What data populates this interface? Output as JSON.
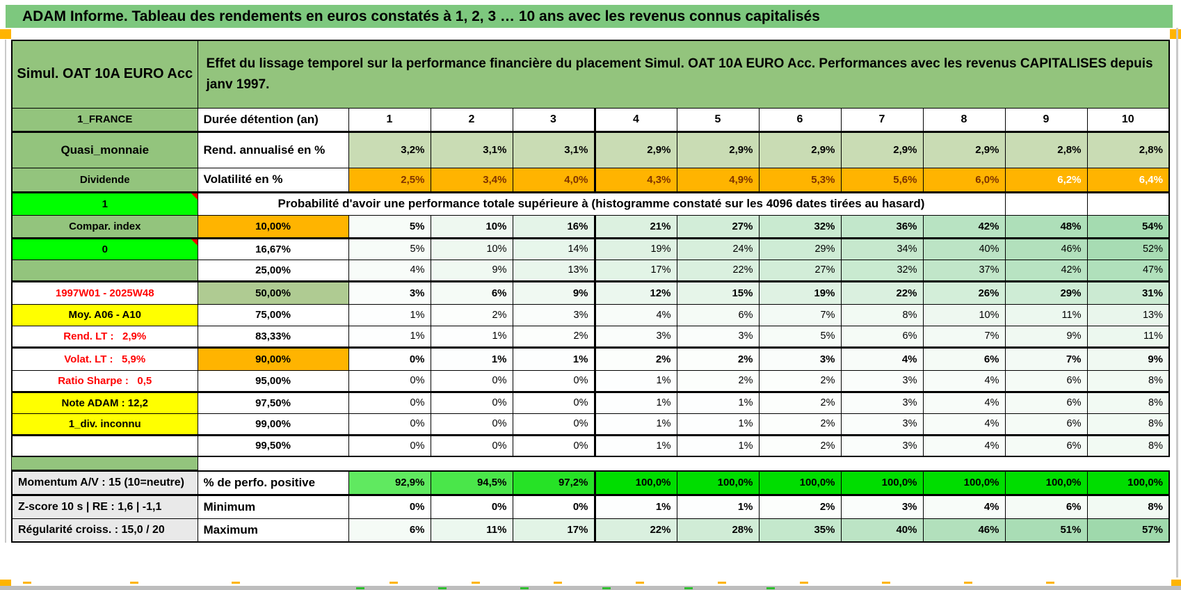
{
  "title": "ADAM Informe. Tableau des rendements en euros constatés à 1, 2, 3 … 10 ans avec les revenus connus capitalisés",
  "header": {
    "instrument": "Simul. OAT 10A EURO Acc",
    "description": "Effet du lissage temporel sur la performance financière du placement Simul. OAT 10A EURO Acc. Performances avec les revenus CAPITALISES depuis janv 1997."
  },
  "left": {
    "france": "1_FRANCE",
    "quasi": "Quasi_monnaie",
    "dividende": "Dividende",
    "one": "1",
    "momentum": "Momentum A/V : 15 (10=neutre)",
    "zscore": "Z-score 10 s | RE : 1,6 | -1,1",
    "regularite": "Régularité croiss. : 15,0 / 20"
  },
  "row_labels": {
    "duree": "Durée détention (an)",
    "rend": "Rend. annualisé en %",
    "volat": "Volatilité en %",
    "proba": "Probabilité d'avoir une performance totale supérieure à (histogramme constaté sur les 4096 dates tirées au hasard)",
    "perfo": "% de perfo. positive",
    "min": "Minimum",
    "max": "Maximum"
  },
  "columns": [
    "1",
    "2",
    "3",
    "4",
    "5",
    "6",
    "7",
    "8",
    "9",
    "10"
  ],
  "rows": {
    "rend_annualise": [
      "3,2%",
      "3,1%",
      "3,1%",
      "2,9%",
      "2,9%",
      "2,9%",
      "2,9%",
      "2,9%",
      "2,8%",
      "2,8%"
    ],
    "volatilite": [
      "2,5%",
      "3,4%",
      "4,0%",
      "4,3%",
      "4,9%",
      "5,3%",
      "5,6%",
      "6,0%",
      "6,2%",
      "6,4%"
    ],
    "prob_rows": [
      {
        "label": "10,00%",
        "style": "orange",
        "bold": true,
        "values": [
          "5%",
          "10%",
          "16%",
          "21%",
          "27%",
          "32%",
          "36%",
          "42%",
          "48%",
          "54%"
        ]
      },
      {
        "label": "16,67%",
        "style": "plain",
        "bold": false,
        "values": [
          "5%",
          "10%",
          "14%",
          "19%",
          "24%",
          "29%",
          "34%",
          "40%",
          "46%",
          "52%"
        ]
      },
      {
        "label": "25,00%",
        "style": "plain",
        "bold": false,
        "values": [
          "4%",
          "9%",
          "13%",
          "17%",
          "22%",
          "27%",
          "32%",
          "37%",
          "42%",
          "47%"
        ]
      },
      {
        "label": "50,00%",
        "style": "sage",
        "bold": true,
        "values": [
          "3%",
          "6%",
          "9%",
          "12%",
          "15%",
          "19%",
          "22%",
          "26%",
          "29%",
          "31%"
        ]
      },
      {
        "label": "75,00%",
        "style": "plain",
        "bold": false,
        "values": [
          "1%",
          "2%",
          "3%",
          "4%",
          "6%",
          "7%",
          "8%",
          "10%",
          "11%",
          "13%"
        ]
      },
      {
        "label": "83,33%",
        "style": "plain",
        "bold": false,
        "values": [
          "1%",
          "1%",
          "2%",
          "3%",
          "3%",
          "5%",
          "6%",
          "7%",
          "9%",
          "11%"
        ]
      },
      {
        "label": "90,00%",
        "style": "orange",
        "bold": true,
        "values": [
          "0%",
          "1%",
          "1%",
          "2%",
          "2%",
          "3%",
          "4%",
          "6%",
          "7%",
          "9%"
        ]
      },
      {
        "label": "95,00%",
        "style": "plain",
        "bold": false,
        "values": [
          "0%",
          "0%",
          "0%",
          "1%",
          "2%",
          "2%",
          "3%",
          "4%",
          "6%",
          "8%"
        ]
      },
      {
        "label": "97,50%",
        "style": "plain",
        "bold": false,
        "values": [
          "0%",
          "0%",
          "0%",
          "1%",
          "1%",
          "2%",
          "3%",
          "4%",
          "6%",
          "8%"
        ]
      },
      {
        "label": "99,00%",
        "style": "plain",
        "bold": false,
        "values": [
          "0%",
          "0%",
          "0%",
          "1%",
          "1%",
          "2%",
          "3%",
          "4%",
          "6%",
          "8%"
        ]
      },
      {
        "label": "99,50%",
        "style": "plain",
        "bold": false,
        "values": [
          "0%",
          "0%",
          "0%",
          "1%",
          "1%",
          "2%",
          "3%",
          "4%",
          "6%",
          "8%"
        ]
      }
    ],
    "perfo_positive": [
      "92,9%",
      "94,5%",
      "97,2%",
      "100,0%",
      "100,0%",
      "100,0%",
      "100,0%",
      "100,0%",
      "100,0%",
      "100,0%"
    ],
    "minimum": [
      "0%",
      "0%",
      "0%",
      "1%",
      "1%",
      "2%",
      "3%",
      "4%",
      "6%",
      "8%"
    ],
    "maximum": [
      "6%",
      "11%",
      "17%",
      "22%",
      "28%",
      "35%",
      "40%",
      "46%",
      "51%",
      "57%"
    ]
  },
  "prob_left_cells": [
    {
      "text": "Compar. index",
      "style": "green"
    },
    {
      "text": "0",
      "style": "bright",
      "marker": true
    },
    {
      "text": "",
      "style": "green"
    },
    {
      "text": "1997W01 - 2025W48",
      "style": "period"
    },
    {
      "text": "Moy. A06 - A10",
      "style": "yellowright"
    },
    {
      "text": "Rend. LT :   2,9%",
      "style": "redright"
    },
    {
      "text": "Volat. LT :   5,9%",
      "style": "redright"
    },
    {
      "text": "Ratio Sharpe :   0,5",
      "style": "redright"
    },
    {
      "text": "Note ADAM : 12,2",
      "style": "yellowleft"
    },
    {
      "text": "1_div. inconnu",
      "style": "yellowleft"
    },
    {
      "text": "",
      "style": "blank"
    }
  ],
  "colors": {
    "title_green": "#7DC87E",
    "header_green": "#93C47D",
    "bright_green": "#00FF00",
    "orange": "#FFB400",
    "sage": "#C9DCB4",
    "sage_dark": "#AFCB92",
    "yellow": "#FFFF00",
    "grey_label": "#E9E9E9",
    "red_text": "#FF0000",
    "volat_text": "#7F3300",
    "volat_text_hi": "#FFFFFF",
    "prob_scale_end": "#9FD9AC",
    "perfo_green_low": "#60E960",
    "perfo_green_hi": "#00DD00"
  }
}
